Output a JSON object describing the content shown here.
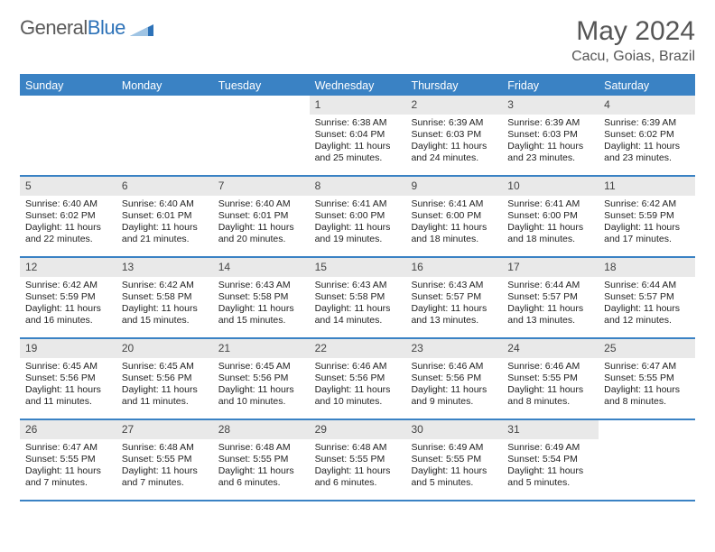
{
  "brand": {
    "part1": "General",
    "part2": "Blue"
  },
  "title": "May 2024",
  "location": "Cacu, Goias, Brazil",
  "colors": {
    "header_bg": "#3a82c4",
    "daynum_bg": "#e9e9e9",
    "text": "#222222",
    "title": "#555555",
    "rule": "#3a82c4",
    "logo_gray": "#5a5a5a",
    "logo_blue": "#2d72b8"
  },
  "dow": [
    "Sunday",
    "Monday",
    "Tuesday",
    "Wednesday",
    "Thursday",
    "Friday",
    "Saturday"
  ],
  "weeks": [
    [
      null,
      null,
      null,
      {
        "n": "1",
        "sr": "6:38 AM",
        "ss": "6:04 PM",
        "dl": "11 hours and 25 minutes."
      },
      {
        "n": "2",
        "sr": "6:39 AM",
        "ss": "6:03 PM",
        "dl": "11 hours and 24 minutes."
      },
      {
        "n": "3",
        "sr": "6:39 AM",
        "ss": "6:03 PM",
        "dl": "11 hours and 23 minutes."
      },
      {
        "n": "4",
        "sr": "6:39 AM",
        "ss": "6:02 PM",
        "dl": "11 hours and 23 minutes."
      }
    ],
    [
      {
        "n": "5",
        "sr": "6:40 AM",
        "ss": "6:02 PM",
        "dl": "11 hours and 22 minutes."
      },
      {
        "n": "6",
        "sr": "6:40 AM",
        "ss": "6:01 PM",
        "dl": "11 hours and 21 minutes."
      },
      {
        "n": "7",
        "sr": "6:40 AM",
        "ss": "6:01 PM",
        "dl": "11 hours and 20 minutes."
      },
      {
        "n": "8",
        "sr": "6:41 AM",
        "ss": "6:00 PM",
        "dl": "11 hours and 19 minutes."
      },
      {
        "n": "9",
        "sr": "6:41 AM",
        "ss": "6:00 PM",
        "dl": "11 hours and 18 minutes."
      },
      {
        "n": "10",
        "sr": "6:41 AM",
        "ss": "6:00 PM",
        "dl": "11 hours and 18 minutes."
      },
      {
        "n": "11",
        "sr": "6:42 AM",
        "ss": "5:59 PM",
        "dl": "11 hours and 17 minutes."
      }
    ],
    [
      {
        "n": "12",
        "sr": "6:42 AM",
        "ss": "5:59 PM",
        "dl": "11 hours and 16 minutes."
      },
      {
        "n": "13",
        "sr": "6:42 AM",
        "ss": "5:58 PM",
        "dl": "11 hours and 15 minutes."
      },
      {
        "n": "14",
        "sr": "6:43 AM",
        "ss": "5:58 PM",
        "dl": "11 hours and 15 minutes."
      },
      {
        "n": "15",
        "sr": "6:43 AM",
        "ss": "5:58 PM",
        "dl": "11 hours and 14 minutes."
      },
      {
        "n": "16",
        "sr": "6:43 AM",
        "ss": "5:57 PM",
        "dl": "11 hours and 13 minutes."
      },
      {
        "n": "17",
        "sr": "6:44 AM",
        "ss": "5:57 PM",
        "dl": "11 hours and 13 minutes."
      },
      {
        "n": "18",
        "sr": "6:44 AM",
        "ss": "5:57 PM",
        "dl": "11 hours and 12 minutes."
      }
    ],
    [
      {
        "n": "19",
        "sr": "6:45 AM",
        "ss": "5:56 PM",
        "dl": "11 hours and 11 minutes."
      },
      {
        "n": "20",
        "sr": "6:45 AM",
        "ss": "5:56 PM",
        "dl": "11 hours and 11 minutes."
      },
      {
        "n": "21",
        "sr": "6:45 AM",
        "ss": "5:56 PM",
        "dl": "11 hours and 10 minutes."
      },
      {
        "n": "22",
        "sr": "6:46 AM",
        "ss": "5:56 PM",
        "dl": "11 hours and 10 minutes."
      },
      {
        "n": "23",
        "sr": "6:46 AM",
        "ss": "5:56 PM",
        "dl": "11 hours and 9 minutes."
      },
      {
        "n": "24",
        "sr": "6:46 AM",
        "ss": "5:55 PM",
        "dl": "11 hours and 8 minutes."
      },
      {
        "n": "25",
        "sr": "6:47 AM",
        "ss": "5:55 PM",
        "dl": "11 hours and 8 minutes."
      }
    ],
    [
      {
        "n": "26",
        "sr": "6:47 AM",
        "ss": "5:55 PM",
        "dl": "11 hours and 7 minutes."
      },
      {
        "n": "27",
        "sr": "6:48 AM",
        "ss": "5:55 PM",
        "dl": "11 hours and 7 minutes."
      },
      {
        "n": "28",
        "sr": "6:48 AM",
        "ss": "5:55 PM",
        "dl": "11 hours and 6 minutes."
      },
      {
        "n": "29",
        "sr": "6:48 AM",
        "ss": "5:55 PM",
        "dl": "11 hours and 6 minutes."
      },
      {
        "n": "30",
        "sr": "6:49 AM",
        "ss": "5:55 PM",
        "dl": "11 hours and 5 minutes."
      },
      {
        "n": "31",
        "sr": "6:49 AM",
        "ss": "5:54 PM",
        "dl": "11 hours and 5 minutes."
      },
      null
    ]
  ],
  "labels": {
    "sunrise": "Sunrise:",
    "sunset": "Sunset:",
    "daylight": "Daylight:"
  }
}
